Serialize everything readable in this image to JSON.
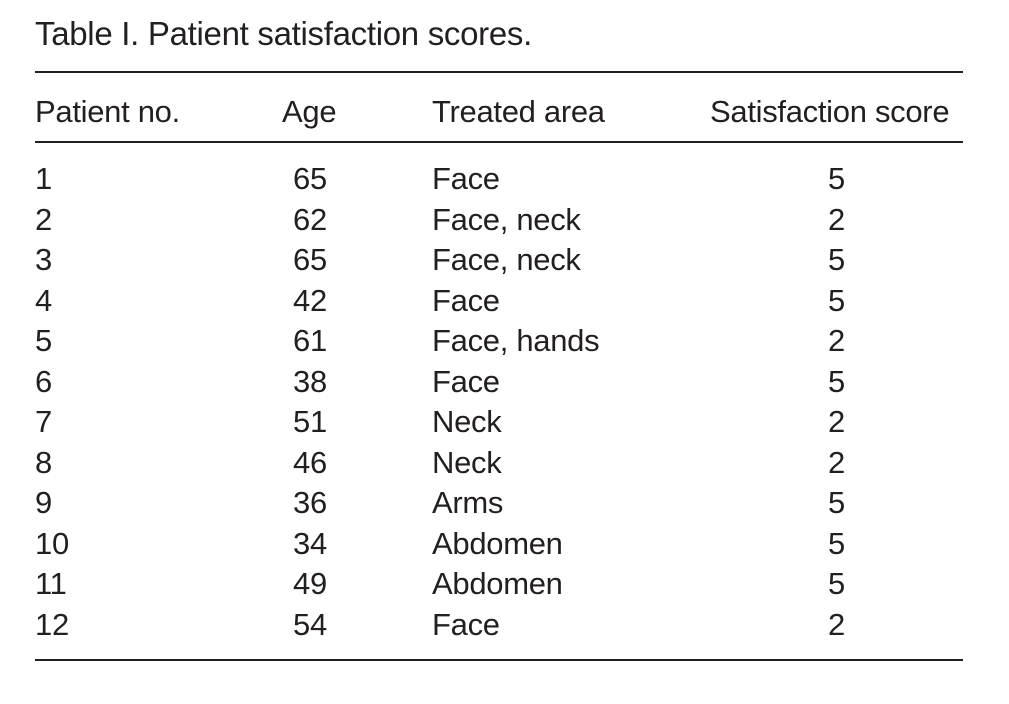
{
  "title": "Table I. Patient satisfaction scores.",
  "colors": {
    "text": "#231f20",
    "background": "#ffffff",
    "rule": "#231f20"
  },
  "table": {
    "columns": [
      "Patient no.",
      "Age",
      "Treated area",
      "Satisfaction score"
    ],
    "rows": [
      {
        "patient_no": "1",
        "age": "65",
        "treated_area": "Face",
        "satisfaction_score": "5"
      },
      {
        "patient_no": "2",
        "age": "62",
        "treated_area": "Face, neck",
        "satisfaction_score": "2"
      },
      {
        "patient_no": "3",
        "age": "65",
        "treated_area": "Face, neck",
        "satisfaction_score": "5"
      },
      {
        "patient_no": "4",
        "age": "42",
        "treated_area": "Face",
        "satisfaction_score": "5"
      },
      {
        "patient_no": "5",
        "age": "61",
        "treated_area": "Face, hands",
        "satisfaction_score": "2"
      },
      {
        "patient_no": "6",
        "age": "38",
        "treated_area": "Face",
        "satisfaction_score": "5"
      },
      {
        "patient_no": "7",
        "age": "51",
        "treated_area": "Neck",
        "satisfaction_score": "2"
      },
      {
        "patient_no": "8",
        "age": "46",
        "treated_area": "Neck",
        "satisfaction_score": "2"
      },
      {
        "patient_no": "9",
        "age": "36",
        "treated_area": "Arms",
        "satisfaction_score": "5"
      },
      {
        "patient_no": "10",
        "age": "34",
        "treated_area": "Abdomen",
        "satisfaction_score": "5"
      },
      {
        "patient_no": "11",
        "age": "49",
        "treated_area": "Abdomen",
        "satisfaction_score": "5"
      },
      {
        "patient_no": "12",
        "age": "54",
        "treated_area": "Face",
        "satisfaction_score": "2"
      }
    ]
  }
}
